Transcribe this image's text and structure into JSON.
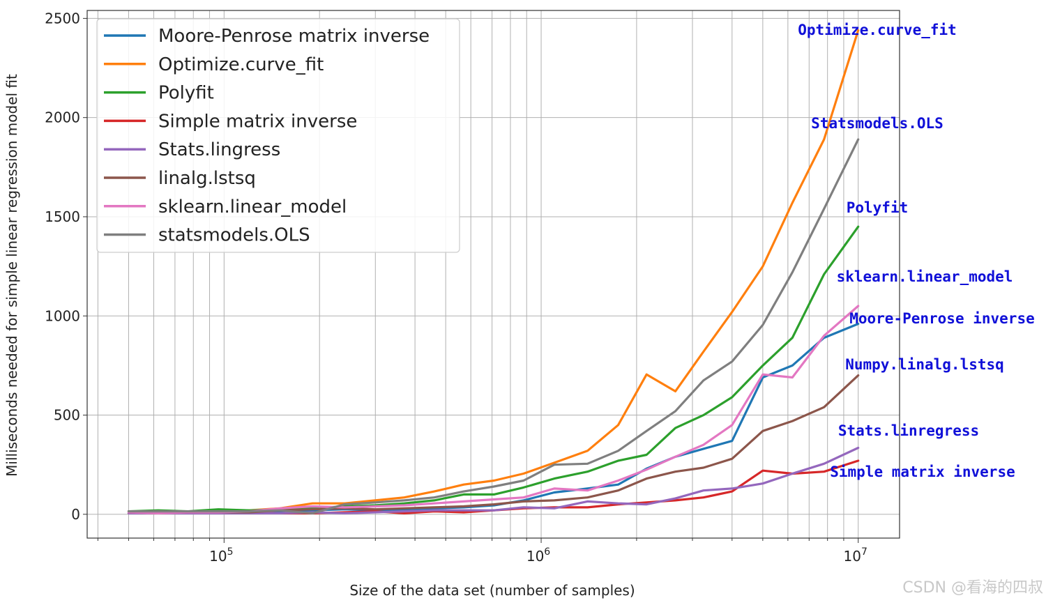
{
  "chart_data": {
    "type": "line",
    "title": "",
    "xlabel": "Size of the data set (number of samples)",
    "ylabel": "Milliseconds needed for simple linear regression model fit",
    "xscale": "log",
    "xlim": [
      37000,
      13500000
    ],
    "ylim": [
      -120,
      2540
    ],
    "grid": true,
    "legend_position": "top-left",
    "yticks": [
      0,
      500,
      1000,
      1500,
      2000,
      2500
    ],
    "ytick_labels": [
      "0",
      "500",
      "1000",
      "1500",
      "2000",
      "2500"
    ],
    "xticks": [
      {
        "value": 100000,
        "base": "10",
        "exp": "5"
      },
      {
        "value": 1000000,
        "base": "10",
        "exp": "6"
      },
      {
        "value": 10000000,
        "base": "10",
        "exp": "7"
      }
    ],
    "x": [
      50000,
      62000,
      77000,
      96000,
      120000,
      150000,
      190000,
      240000,
      300000,
      370000,
      460000,
      570000,
      710000,
      880000,
      1100000,
      1400000,
      1750000,
      2150000,
      2650000,
      3250000,
      4000000,
      5000000,
      6200000,
      7800000,
      10000000
    ],
    "series": [
      {
        "name": "Moore-Penrose matrix inverse",
        "color": "#1f77b4",
        "values": [
          5,
          8,
          10,
          12,
          10,
          15,
          20,
          25,
          20,
          25,
          30,
          35,
          45,
          70,
          110,
          130,
          150,
          230,
          290,
          330,
          370,
          690,
          750,
          890,
          960
        ]
      },
      {
        "name": "Optimize.curve_fit",
        "color": "#ff7f0e",
        "values": [
          15,
          10,
          10,
          15,
          20,
          30,
          55,
          55,
          70,
          85,
          115,
          150,
          170,
          205,
          260,
          320,
          450,
          705,
          620,
          820,
          1020,
          1250,
          1570,
          1890,
          2440
        ]
      },
      {
        "name": "Polyfit",
        "color": "#2ca02c",
        "values": [
          15,
          20,
          15,
          25,
          20,
          25,
          30,
          40,
          45,
          55,
          70,
          100,
          100,
          135,
          180,
          215,
          270,
          300,
          435,
          500,
          590,
          750,
          890,
          1210,
          1450
        ]
      },
      {
        "name": "Simple matrix inverse",
        "color": "#d62728",
        "values": [
          5,
          5,
          5,
          5,
          5,
          5,
          5,
          10,
          15,
          5,
          15,
          10,
          20,
          30,
          35,
          35,
          50,
          60,
          70,
          85,
          115,
          220,
          205,
          215,
          270
        ]
      },
      {
        "name": "Stats.lingress",
        "color": "#9467bd",
        "values": [
          5,
          5,
          5,
          5,
          5,
          5,
          10,
          5,
          10,
          15,
          20,
          20,
          20,
          35,
          30,
          65,
          55,
          50,
          80,
          120,
          130,
          155,
          205,
          255,
          335
        ]
      },
      {
        "name": "linalg.lstsq",
        "color": "#8c564b",
        "values": [
          10,
          5,
          10,
          10,
          10,
          20,
          25,
          30,
          25,
          30,
          35,
          40,
          50,
          65,
          70,
          85,
          120,
          180,
          215,
          235,
          280,
          420,
          470,
          540,
          700
        ]
      },
      {
        "name": "sklearn.linear_model",
        "color": "#e377c2",
        "values": [
          10,
          5,
          10,
          10,
          15,
          30,
          40,
          35,
          40,
          45,
          55,
          65,
          75,
          85,
          130,
          120,
          170,
          225,
          290,
          350,
          450,
          705,
          690,
          900,
          1050
        ]
      },
      {
        "name": "statsmodels.OLS",
        "color": "#7f7f7f",
        "values": [
          15,
          15,
          15,
          15,
          15,
          20,
          5,
          50,
          60,
          70,
          85,
          115,
          140,
          170,
          250,
          255,
          320,
          420,
          520,
          675,
          770,
          955,
          1220,
          1540,
          1890
        ]
      }
    ],
    "annotations": [
      {
        "text": "Optimize.curve_fit"
      },
      {
        "text": "Statsmodels.OLS"
      },
      {
        "text": "Polyfit"
      },
      {
        "text": "sklearn.linear_model"
      },
      {
        "text": "Moore-Penrose inverse"
      },
      {
        "text": "Numpy.linalg.lstsq"
      },
      {
        "text": "Stats.linregress"
      },
      {
        "text": "Simple matrix inverse"
      }
    ]
  },
  "watermark": "CSDN @看海的四叔"
}
